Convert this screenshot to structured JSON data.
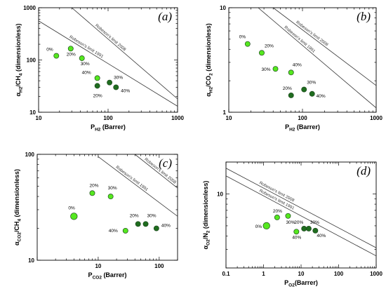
{
  "colors": {
    "light": "#55e81f",
    "dark": "#1f6d1f",
    "marker_edge": "#1f4a1f"
  },
  "chart_data": [
    {
      "type": "scatter",
      "panel_label": "(a)",
      "xlabel": [
        "P",
        "H2",
        " (Barrer)"
      ],
      "ylabel": [
        "α",
        "H2",
        "/CH",
        "4",
        " (dimensionless)"
      ],
      "xscale": "log",
      "yscale": "log",
      "xlim": [
        10,
        1000
      ],
      "ylim": [
        10,
        1000
      ],
      "xticks": [
        "10",
        "100",
        "1000"
      ],
      "yticks": [
        "10",
        "100",
        "1000"
      ],
      "bounds": [
        {
          "label": "Robeson's limit 2008",
          "x": [
            30,
            1000
          ],
          "y": [
            1000,
            18
          ]
        },
        {
          "label": "Robeson's limit 1991",
          "x": [
            10,
            1000
          ],
          "y": [
            560,
            13
          ]
        }
      ],
      "series": [
        {
          "color": "light",
          "points": [
            {
              "x": 18,
              "y": 120,
              "label": "0%",
              "ldx": -14,
              "ldy": -7
            },
            {
              "x": 29,
              "y": 165,
              "label": "20%",
              "ldx": -6,
              "ldy": 10
            },
            {
              "x": 42,
              "y": 108,
              "label": "30%",
              "ldx": -2,
              "ldy": 10
            },
            {
              "x": 70,
              "y": 45,
              "label": "40%",
              "ldx": -22,
              "ldy": -6
            }
          ]
        },
        {
          "color": "dark",
          "points": [
            {
              "x": 70,
              "y": 32,
              "label": "20%",
              "ldx": -6,
              "ldy": 16
            },
            {
              "x": 105,
              "y": 37,
              "label": "30%",
              "ldx": 6,
              "ldy": -5
            },
            {
              "x": 130,
              "y": 30,
              "label": "40%",
              "ldx": 7,
              "ldy": 7
            }
          ]
        }
      ]
    },
    {
      "type": "scatter",
      "panel_label": "(b)",
      "xlabel": [
        "P",
        "H2",
        " (Barrer)"
      ],
      "ylabel": [
        "α",
        "H2",
        "/CO",
        "2",
        " (dimensionless)"
      ],
      "xscale": "log",
      "yscale": "log",
      "xlim": [
        10,
        1000
      ],
      "ylim": [
        1,
        10
      ],
      "xticks": [
        "10",
        "100",
        "1000"
      ],
      "yticks": [
        "1",
        "10"
      ],
      "bounds": [
        {
          "label": "Robeson's limit 2008",
          "x": [
            40,
            1000
          ],
          "y": [
            10,
            1.8
          ]
        },
        {
          "label": "Robeson's limit 1991",
          "x": [
            25,
            1000
          ],
          "y": [
            10,
            1.1
          ]
        }
      ],
      "series": [
        {
          "color": "light",
          "points": [
            {
              "x": 18,
              "y": 4.5,
              "label": "0%",
              "ldx": -12,
              "ldy": -8
            },
            {
              "x": 28,
              "y": 3.7,
              "label": "20%",
              "ldx": 4,
              "ldy": -8
            },
            {
              "x": 43,
              "y": 2.6,
              "label": "30%",
              "ldx": -20,
              "ldy": 3
            },
            {
              "x": 70,
              "y": 2.4,
              "label": "40%",
              "ldx": 2,
              "ldy": -9
            }
          ]
        },
        {
          "color": "dark",
          "points": [
            {
              "x": 70,
              "y": 1.45,
              "label": "20%",
              "ldx": -12,
              "ldy": -8
            },
            {
              "x": 105,
              "y": 1.65,
              "label": "30%",
              "ldx": 4,
              "ldy": -8
            },
            {
              "x": 135,
              "y": 1.5,
              "label": "40%",
              "ldx": 6,
              "ldy": 5
            }
          ]
        }
      ]
    },
    {
      "type": "scatter",
      "panel_label": "(c)",
      "xlabel": [
        "P",
        "CO2",
        " (Barrer)"
      ],
      "ylabel": [
        "α",
        "CO2",
        "/CH",
        "4",
        " (dimensionless)"
      ],
      "xscale": "log",
      "yscale": "log",
      "xlim": [
        1,
        200
      ],
      "ylim": [
        10,
        100
      ],
      "xticks": [
        "10",
        "100"
      ],
      "yticks": [
        "10",
        "100"
      ],
      "bounds": [
        {
          "label": "Robeson's limit 1991",
          "x": [
            10,
            200
          ],
          "y": [
            95,
            26
          ]
        },
        {
          "label": "Robeson's limit 2008",
          "x": [
            40,
            200
          ],
          "y": [
            100,
            48
          ]
        }
      ],
      "series": [
        {
          "color": "light",
          "points": [
            {
              "x": 4,
              "y": 26,
              "label": "0%",
              "ldx": -8,
              "ldy": -10
            },
            {
              "x": 8,
              "y": 43,
              "label": "20%",
              "ldx": -4,
              "ldy": -9
            },
            {
              "x": 16,
              "y": 40,
              "label": "30%",
              "ldx": -4,
              "ldy": -10
            },
            {
              "x": 28,
              "y": 19,
              "label": "40%",
              "ldx": -24,
              "ldy": 2
            }
          ]
        },
        {
          "color": "dark",
          "points": [
            {
              "x": 45,
              "y": 22,
              "label": "20%",
              "ldx": -12,
              "ldy": -10
            },
            {
              "x": 60,
              "y": 22,
              "label": "30%",
              "ldx": 2,
              "ldy": -10
            },
            {
              "x": 90,
              "y": 20,
              "label": "40%",
              "ldx": 7,
              "ldy": -2
            }
          ]
        }
      ]
    },
    {
      "type": "scatter",
      "panel_label": "(d)",
      "xlabel": [
        "P",
        "O2",
        "(Barrer)"
      ],
      "ylabel": [
        "α",
        "O2",
        "/N",
        "2",
        " (dimensionless)"
      ],
      "xscale": "log",
      "yscale": "log",
      "xlim": [
        0.1,
        1000
      ],
      "ylim": [
        2,
        20
      ],
      "xticks": [
        "0.1",
        "1",
        "10",
        "100",
        "1000"
      ],
      "yticks": [
        "10"
      ],
      "bounds": [
        {
          "label": "Robeson's limit 2008",
          "x": [
            0.1,
            1000
          ],
          "y": [
            17.5,
            3.1
          ]
        },
        {
          "label": "Robeson's limit 1991",
          "x": [
            0.1,
            1000
          ],
          "y": [
            14.8,
            2.6
          ]
        }
      ],
      "series": [
        {
          "color": "light",
          "points": [
            {
              "x": 1.2,
              "y": 5.0,
              "label": "0%",
              "ldx": -16,
              "ldy": 3
            },
            {
              "x": 2.3,
              "y": 6.0,
              "label": "20%",
              "ldx": -6,
              "ldy": -7
            },
            {
              "x": 4.5,
              "y": 6.2,
              "label": "30%",
              "ldx": -3,
              "ldy": 11
            },
            {
              "x": 7.5,
              "y": 4.4,
              "label": "40%",
              "ldx": -6,
              "ldy": 10
            }
          ]
        },
        {
          "color": "dark",
          "points": [
            {
              "x": 12,
              "y": 4.7,
              "label": "20%",
              "ldx": -14,
              "ldy": -7
            },
            {
              "x": 16,
              "y": 4.7,
              "label": "30%",
              "ldx": 2,
              "ldy": -7
            },
            {
              "x": 24,
              "y": 4.5,
              "label": "40%",
              "ldx": 2,
              "ldy": 9
            }
          ]
        }
      ]
    }
  ]
}
